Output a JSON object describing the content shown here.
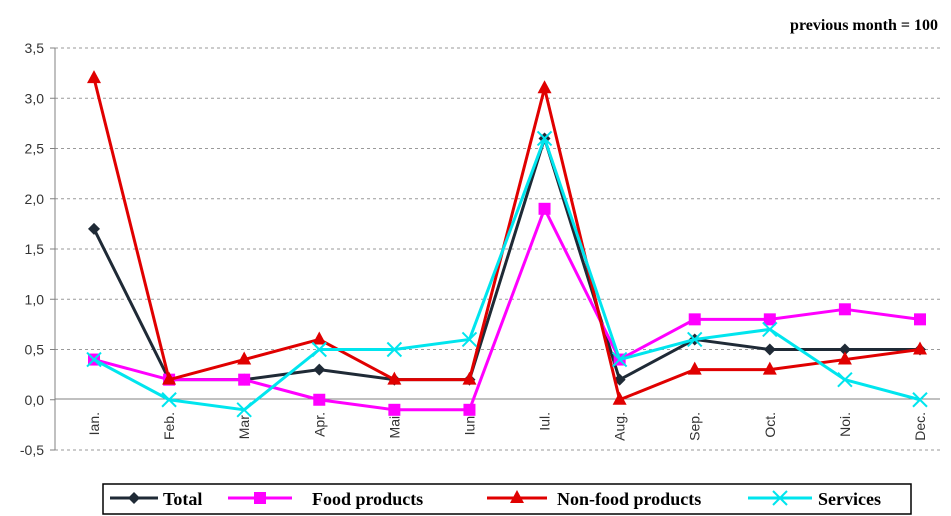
{
  "chart_data": {
    "type": "line",
    "note": "previous month = 100",
    "categories": [
      "Ian.",
      "Feb.",
      "Mar.",
      "Apr.",
      "Mai.",
      "Iun.",
      "Iul.",
      "Aug.",
      "Sep.",
      "Oct.",
      "Noi.",
      "Dec."
    ],
    "y_ticks": [
      "3,5",
      "3,0",
      "2,5",
      "2,0",
      "1,5",
      "1,0",
      "0,5",
      "0,0",
      "-0,5"
    ],
    "y_tick_values": [
      3.5,
      3.0,
      2.5,
      2.0,
      1.5,
      1.0,
      0.5,
      0.0,
      -0.5
    ],
    "ylim": [
      -0.5,
      3.5
    ],
    "grid": true,
    "legend_position": "bottom",
    "series": [
      {
        "name": "Total",
        "color": "#1f2a36",
        "marker": "diamond",
        "values": [
          1.7,
          0.2,
          0.2,
          0.3,
          0.2,
          0.2,
          2.6,
          0.2,
          0.6,
          0.5,
          0.5,
          0.5
        ]
      },
      {
        "name": "Food products",
        "color": "#ff00ff",
        "marker": "square",
        "values": [
          0.4,
          0.2,
          0.2,
          0.0,
          -0.1,
          -0.1,
          1.9,
          0.4,
          0.8,
          0.8,
          0.9,
          0.8
        ]
      },
      {
        "name": "Non-food products",
        "color": "#e00000",
        "marker": "triangle",
        "values": [
          3.2,
          0.2,
          0.4,
          0.6,
          0.2,
          0.2,
          3.1,
          0.0,
          0.3,
          0.3,
          0.4,
          0.5
        ]
      },
      {
        "name": "Services",
        "color": "#00e5ee",
        "marker": "x",
        "values": [
          0.4,
          0.0,
          -0.1,
          0.5,
          0.5,
          0.6,
          2.6,
          0.4,
          0.6,
          0.7,
          0.2,
          0.0
        ]
      }
    ]
  }
}
